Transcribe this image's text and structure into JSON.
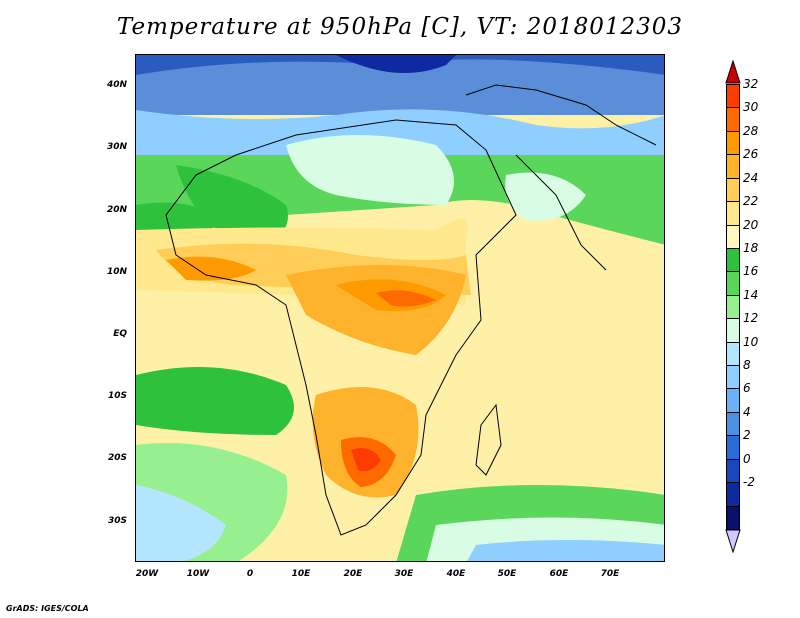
{
  "title": "Temperature at 950hPa [C], VT: 2018012303",
  "footer": "GrADS: IGES/COLA",
  "map": {
    "lon_range": [
      -23,
      80
    ],
    "lat_range": [
      -37,
      45
    ],
    "lat_labels": [
      "40N",
      "30N",
      "20N",
      "10N",
      "EQ",
      "10S",
      "20S",
      "30S"
    ],
    "lat_values": [
      40,
      30,
      20,
      10,
      0,
      -10,
      -20,
      -30
    ],
    "lon_labels": [
      "20W",
      "10W",
      "0",
      "10E",
      "20E",
      "30E",
      "40E",
      "50E",
      "60E",
      "70E"
    ],
    "lon_values": [
      -20,
      -10,
      0,
      10,
      20,
      30,
      40,
      50,
      60,
      70
    ]
  },
  "colorbar": {
    "labels": [
      "32",
      "30",
      "28",
      "26",
      "24",
      "22",
      "20",
      "18",
      "16",
      "14",
      "12",
      "10",
      "8",
      "6",
      "4",
      "2",
      "0",
      "-2"
    ],
    "colors_top_to_bottom": [
      "#ff3c00",
      "#ff6a00",
      "#ff9a00",
      "#ffb22c",
      "#ffcd58",
      "#ffe98c",
      "#fff8c0",
      "#2ec23c",
      "#5ad65a",
      "#96f090",
      "#d8fce4",
      "#b4e6ff",
      "#8fcfff",
      "#6ab2f5",
      "#4a90e2",
      "#2a6cd6",
      "#1a46c0",
      "#0f2aa0",
      "#0a0f6e"
    ],
    "over_color": "#c80000",
    "under_color": "#d0c8ff"
  }
}
